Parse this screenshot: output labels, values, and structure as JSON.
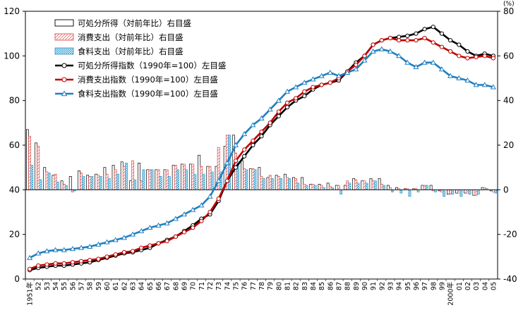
{
  "chart_data": {
    "type": "bar+line",
    "categories": [
      "1951年",
      "52",
      "53",
      "54",
      "55",
      "56",
      "57",
      "58",
      "59",
      "60",
      "61",
      "62",
      "63",
      "64",
      "65",
      "66",
      "67",
      "68",
      "69",
      "70",
      "71",
      "72",
      "73",
      "74",
      "75",
      "76",
      "77",
      "78",
      "79",
      "80",
      "81",
      "82",
      "83",
      "84",
      "85",
      "86",
      "87",
      "88",
      "89",
      "90",
      "91",
      "92",
      "93",
      "94",
      "95",
      "96",
      "97",
      "98",
      "99",
      "2000年",
      "01",
      "02",
      "03",
      "04",
      "05"
    ],
    "left_axis": {
      "min": 0,
      "max": 120,
      "step": 20,
      "ticks": [
        "0",
        "20",
        "40",
        "60",
        "80",
        "100",
        "120"
      ]
    },
    "right_axis": {
      "min": -40,
      "max": 80,
      "step": 20,
      "unit": "(%)",
      "ticks": [
        "-40",
        "-20",
        "0",
        "20",
        "40",
        "60",
        "80"
      ]
    },
    "bar_series": [
      {
        "name": "可処分所得（対前年比）右目盛",
        "axis": "right",
        "color": "#000000",
        "values": [
          27,
          21,
          10,
          6.5,
          4,
          6,
          8.5,
          6.5,
          7,
          10,
          11,
          12.5,
          4,
          12,
          9,
          9,
          9,
          11,
          11.5,
          11.5,
          15.5,
          10.5,
          10.5,
          19.5,
          24.5,
          13,
          9.5,
          10,
          5.5,
          6.5,
          7,
          5.5,
          5.5,
          2.5,
          2.5,
          3,
          2,
          2,
          5,
          4,
          5,
          5,
          2,
          1,
          0.5,
          0.5,
          2,
          2,
          -0.5,
          -2,
          -1.5,
          -1.5,
          -2.5,
          1,
          -0.5
        ]
      },
      {
        "name": "消費支出（対前年比）右目盛",
        "axis": "right",
        "color": "#e05050",
        "values": [
          24,
          19.5,
          8,
          7,
          2.5,
          -1,
          7.5,
          6,
          6.5,
          7,
          9,
          10.5,
          13,
          4,
          9,
          9,
          9,
          11,
          11.5,
          11.5,
          10.5,
          10.5,
          19,
          24.5,
          16.5,
          9.5,
          9.5,
          6,
          6.5,
          6,
          5.5,
          5,
          2.5,
          2.5,
          2,
          1.5,
          2,
          4,
          4.5,
          4,
          4,
          2.5,
          1,
          0.5,
          0.5,
          0.5,
          2,
          -0.5,
          -1,
          -2,
          -1.5,
          -1.5,
          -2.5,
          1,
          -1
        ]
      },
      {
        "name": "食料支出（対前年比）右目盛",
        "axis": "right",
        "color": "#3aa0d0",
        "values": [
          11,
          4.5,
          7.5,
          3.5,
          2,
          -0.5,
          6,
          6,
          6,
          5,
          7,
          12,
          4.5,
          9,
          9,
          6,
          6,
          9,
          9,
          7,
          7,
          8,
          8,
          24.5,
          12.5,
          9,
          9,
          5,
          5,
          5,
          5,
          3,
          2,
          2,
          1,
          1,
          -2,
          3,
          3,
          3,
          4,
          2,
          -1,
          -1.5,
          -3,
          -1,
          2,
          -1,
          -3,
          -2,
          -3,
          -2,
          -2,
          0.5,
          -1.5
        ]
      }
    ],
    "line_series": [
      {
        "name": "可処分所得指数（1990年=100）左目盛",
        "axis": "left",
        "color": "#000000",
        "marker": "circle",
        "values": [
          4,
          5,
          5.5,
          6,
          6,
          6.5,
          7,
          7.5,
          8.5,
          9.5,
          10.5,
          11.5,
          12,
          13,
          14,
          16,
          17.5,
          19,
          21.5,
          24,
          27,
          29,
          35,
          44,
          50,
          55,
          60,
          64,
          69,
          73,
          77,
          80,
          82,
          85,
          87,
          88,
          89,
          93,
          97,
          100,
          105,
          107,
          108,
          108.5,
          109,
          110,
          112,
          113,
          110,
          107,
          105,
          102,
          100,
          101,
          100
        ]
      },
      {
        "name": "消費支出指数（1990年=100）左目盛",
        "axis": "left",
        "color": "#c00000",
        "marker": "circle",
        "values": [
          4.5,
          6,
          6.5,
          7,
          7,
          7.5,
          8,
          8.5,
          9,
          10,
          11,
          12,
          12.5,
          14,
          15,
          16,
          17,
          19,
          21,
          23,
          26,
          30,
          36,
          44,
          53,
          58,
          62,
          66,
          70,
          75,
          79,
          81,
          84,
          86,
          87,
          88,
          90,
          93,
          96,
          100,
          105,
          107,
          108,
          107,
          107,
          107,
          108,
          106,
          104,
          102,
          100,
          99,
          99.5,
          100,
          99
        ]
      },
      {
        "name": "食料支出指数（1990年=100）左目盛",
        "axis": "left",
        "color": "#1f7fbf",
        "marker": "triangle",
        "values": [
          9.5,
          11.5,
          12.5,
          13,
          13,
          13.5,
          14,
          14.5,
          15.5,
          16.5,
          17.5,
          18.5,
          20,
          21.5,
          23,
          24,
          25,
          27,
          29,
          31,
          33,
          37,
          44,
          52,
          60,
          65,
          69,
          72,
          76,
          80,
          84,
          86,
          88,
          89.5,
          91,
          92.5,
          91,
          92.5,
          94,
          98,
          102,
          103,
          102,
          100,
          97,
          95,
          97,
          97,
          94,
          91,
          90,
          89,
          87,
          87,
          86
        ]
      }
    ]
  }
}
